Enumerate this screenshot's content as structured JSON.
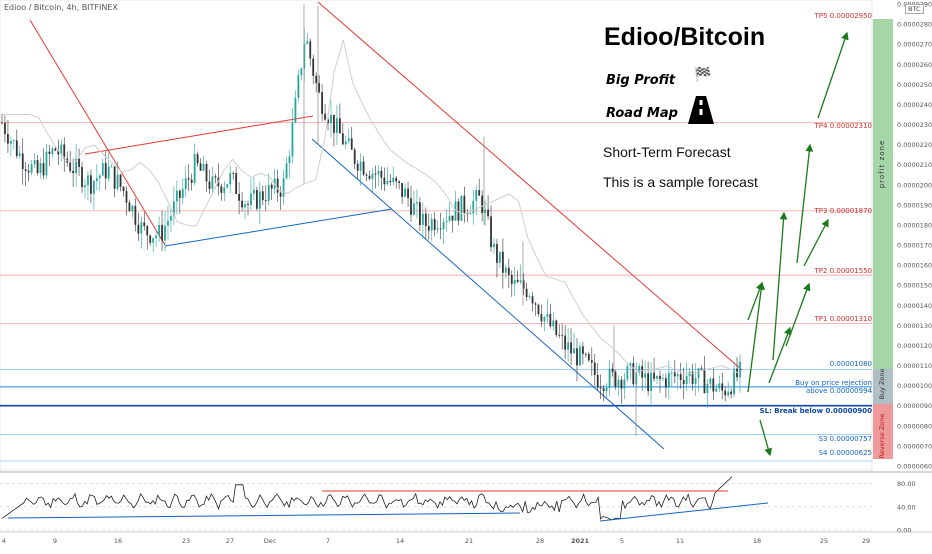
{
  "symbol": "Edioo / Bitcoin, 4h, BITFINEX",
  "currency_badge": "BTC",
  "headline": {
    "title": "Edioo/Bitcoin",
    "big_profit": "Big Profit",
    "road_map": "Road Map",
    "forecast_title": "Short-Term Forecast",
    "forecast_note": "This is a sample forecast"
  },
  "icons": {
    "big_profit": "checkered-flag-icon",
    "road_map": "road-icon"
  },
  "zones": {
    "profit": "profit zone",
    "buy": "Buy Zone",
    "reverse": "Reverse Zone"
  },
  "levels": {
    "tp5": "TP5 0.00002950",
    "tp4": "TP4 0.00002310",
    "tp3": "TP3 0.00001870",
    "tp2": "TP2 0.00001550",
    "tp1": "TP1 0.00001310",
    "current": "0.00001080",
    "buy_line1": "Buy on price rejection",
    "buy_line2": "above 0.00000994",
    "sl": "SL: Break below 0.00000900",
    "s3": "S3 0.00000757",
    "s4": "S4 0.00000625"
  },
  "colors": {
    "profit_zone": "#a5d6a7",
    "buy_zone": "#b0bec5",
    "reverse_zone": "#ef9a9a",
    "candle_up": "#26a69a",
    "candle_down": "#333333",
    "trend_red": "#e53935",
    "trend_blue": "#1565c0",
    "arrow_green": "#1b7a1b",
    "tp_line": "#f4a0a0"
  },
  "chart_data": {
    "type": "candlestick",
    "ylim": [
      5.9e-06,
      2.91e-05
    ],
    "yticks": [
      "0.00002900",
      "0.00002800",
      "0.00002700",
      "0.00002600",
      "0.00002500",
      "0.00002400",
      "0.00002300",
      "0.00002200",
      "0.00002100",
      "0.00002000",
      "0.00001900",
      "0.00001800",
      "0.00001700",
      "0.00001600",
      "0.00001500",
      "0.00001400",
      "0.00001300",
      "0.00001200",
      "0.00001100",
      "0.00001000",
      "0.00000900",
      "0.00000800",
      "0.00000700",
      "0.00000600"
    ],
    "xticks": [
      "4",
      "9",
      "16",
      "23",
      "27",
      "Dec",
      "7",
      "14",
      "21",
      "28",
      "2021",
      "5",
      "11",
      "18",
      "25",
      "29"
    ],
    "price_path": [
      {
        "x": 0,
        "y": 2.31e-05
      },
      {
        "x": 0.02,
        "y": 2.15e-05
      },
      {
        "x": 0.04,
        "y": 2.05e-05
      },
      {
        "x": 0.06,
        "y": 2.18e-05
      },
      {
        "x": 0.08,
        "y": 2.09e-05
      },
      {
        "x": 0.1,
        "y": 2.01e-05
      },
      {
        "x": 0.12,
        "y": 2.08e-05
      },
      {
        "x": 0.14,
        "y": 1.96e-05
      },
      {
        "x": 0.16,
        "y": 1.77e-05
      },
      {
        "x": 0.18,
        "y": 1.75e-05
      },
      {
        "x": 0.2,
        "y": 1.92e-05
      },
      {
        "x": 0.22,
        "y": 2.1e-05
      },
      {
        "x": 0.24,
        "y": 1.99e-05
      },
      {
        "x": 0.26,
        "y": 2.03e-05
      },
      {
        "x": 0.28,
        "y": 1.9e-05
      },
      {
        "x": 0.3,
        "y": 1.96e-05
      },
      {
        "x": 0.32,
        "y": 1.99e-05
      },
      {
        "x": 0.33,
        "y": 2.26e-05
      },
      {
        "x": 0.345,
        "y": 2.75e-05
      },
      {
        "x": 0.36,
        "y": 2.45e-05
      },
      {
        "x": 0.38,
        "y": 2.28e-05
      },
      {
        "x": 0.4,
        "y": 2.14e-05
      },
      {
        "x": 0.42,
        "y": 2.07e-05
      },
      {
        "x": 0.44,
        "y": 2.02e-05
      },
      {
        "x": 0.46,
        "y": 1.95e-05
      },
      {
        "x": 0.48,
        "y": 1.8e-05
      },
      {
        "x": 0.5,
        "y": 1.84e-05
      },
      {
        "x": 0.52,
        "y": 1.88e-05
      },
      {
        "x": 0.545,
        "y": 1.93e-05
      },
      {
        "x": 0.56,
        "y": 1.67e-05
      },
      {
        "x": 0.58,
        "y": 1.5e-05
      },
      {
        "x": 0.6,
        "y": 1.48e-05
      },
      {
        "x": 0.62,
        "y": 1.32e-05
      },
      {
        "x": 0.64,
        "y": 1.2e-05
      },
      {
        "x": 0.66,
        "y": 1.13e-05
      },
      {
        "x": 0.68,
        "y": 1.03e-05
      },
      {
        "x": 0.7,
        "y": 1.04e-05
      },
      {
        "x": 0.72,
        "y": 1.06e-05
      },
      {
        "x": 0.74,
        "y": 1.01e-05
      },
      {
        "x": 0.76,
        "y": 1.04e-05
      },
      {
        "x": 0.78,
        "y": 1.06e-05
      },
      {
        "x": 0.8,
        "y": 1.02e-05
      },
      {
        "x": 0.82,
        "y": 9.7e-06
      },
      {
        "x": 0.84,
        "y": 1.06e-05
      }
    ],
    "oscillator": {
      "yticks": [
        "80.00",
        "40.00",
        "0.00"
      ],
      "ylim": [
        0,
        100
      ]
    }
  }
}
